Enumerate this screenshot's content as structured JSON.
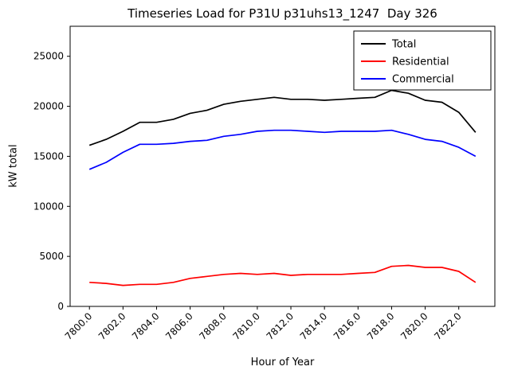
{
  "chart_data": {
    "type": "line",
    "title": "Timeseries Load for P31U p31uhs13_1247  Day 326",
    "xlabel": "Hour of Year",
    "ylabel": "kW total",
    "xlim": [
      7798.85,
      7824.15
    ],
    "ylim": [
      0,
      28000
    ],
    "grid": false,
    "legend_position": "top-right",
    "xticks": [
      {
        "value": 7800,
        "label": "7800.0"
      },
      {
        "value": 7802,
        "label": "7802.0"
      },
      {
        "value": 7804,
        "label": "7804.0"
      },
      {
        "value": 7806,
        "label": "7806.0"
      },
      {
        "value": 7808,
        "label": "7808.0"
      },
      {
        "value": 7810,
        "label": "7810.0"
      },
      {
        "value": 7812,
        "label": "7812.0"
      },
      {
        "value": 7814,
        "label": "7814.0"
      },
      {
        "value": 7816,
        "label": "7816.0"
      },
      {
        "value": 7818,
        "label": "7818.0"
      },
      {
        "value": 7820,
        "label": "7820.0"
      },
      {
        "value": 7822,
        "label": "7822.0"
      }
    ],
    "yticks": [
      {
        "value": 0,
        "label": "0"
      },
      {
        "value": 5000,
        "label": "5000"
      },
      {
        "value": 10000,
        "label": "10000"
      },
      {
        "value": 15000,
        "label": "15000"
      },
      {
        "value": 20000,
        "label": "20000"
      },
      {
        "value": 25000,
        "label": "25000"
      }
    ],
    "x": [
      7800,
      7801,
      7802,
      7803,
      7804,
      7805,
      7806,
      7807,
      7808,
      7809,
      7810,
      7811,
      7812,
      7813,
      7814,
      7815,
      7816,
      7817,
      7818,
      7819,
      7820,
      7821,
      7822,
      7823
    ],
    "series": [
      {
        "name": "Total",
        "color": "#000000",
        "values": [
          16100,
          16700,
          17500,
          18400,
          18400,
          18700,
          19300,
          19600,
          20200,
          20500,
          20700,
          20900,
          20700,
          20700,
          20600,
          20700,
          20800,
          20900,
          21600,
          21300,
          20600,
          20400,
          19400,
          17400
        ]
      },
      {
        "name": "Residential",
        "color": "#ff0000",
        "values": [
          2400,
          2300,
          2100,
          2200,
          2200,
          2400,
          2800,
          3000,
          3200,
          3300,
          3200,
          3300,
          3100,
          3200,
          3200,
          3200,
          3300,
          3400,
          4000,
          4100,
          3900,
          3900,
          3500,
          2400
        ]
      },
      {
        "name": "Commercial",
        "color": "#0000ff",
        "values": [
          13700,
          14400,
          15400,
          16200,
          16200,
          16300,
          16500,
          16600,
          17000,
          17200,
          17500,
          17600,
          17600,
          17500,
          17400,
          17500,
          17500,
          17500,
          17600,
          17200,
          16700,
          16500,
          15900,
          15000
        ]
      }
    ]
  }
}
